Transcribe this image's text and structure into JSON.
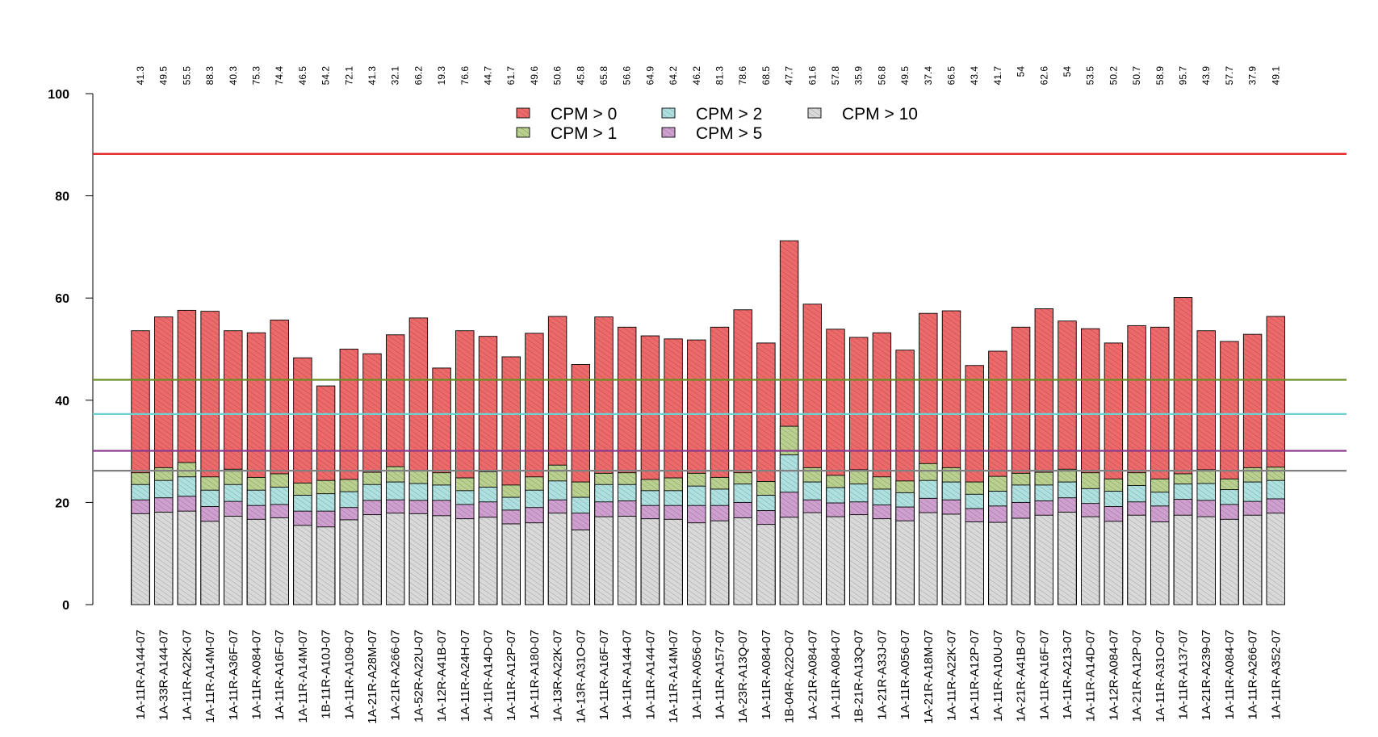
{
  "chart_data": {
    "type": "bar",
    "title": "",
    "xlabel": "",
    "ylabel": "",
    "ylim": [
      0,
      100
    ],
    "yticks": [
      "0",
      "20",
      "40",
      "60",
      "80",
      "100"
    ],
    "categories": [
      "1A-11R-A144-07",
      "1A-33R-A144-07",
      "1A-11R-A22K-07",
      "1A-11R-A14M-07",
      "1A-11R-A36F-07",
      "1A-11R-A084-07",
      "1A-11R-A16F-07",
      "1A-11R-A14M-07",
      "1B-11R-A10J-07",
      "1A-11R-A109-07",
      "1A-21R-A28M-07",
      "1A-21R-A266-07",
      "1A-52R-A22U-07",
      "1A-12R-A41B-07",
      "1A-11R-A24H-07",
      "1A-11R-A14D-07",
      "1A-11R-A12P-07",
      "1A-11R-A180-07",
      "1A-13R-A22K-07",
      "1A-13R-A31O-07",
      "1A-11R-A16F-07",
      "1A-11R-A144-07",
      "1A-11R-A144-07",
      "1A-11R-A14M-07",
      "1A-11R-A056-07",
      "1A-11R-A157-07",
      "1A-23R-A13Q-07",
      "1A-11R-A084-07",
      "1B-04R-A22O-07",
      "1A-21R-A084-07",
      "1A-11R-A084-07",
      "1B-21R-A13Q-07",
      "1A-21R-A33J-07",
      "1A-11R-A056-07",
      "1A-21R-A18M-07",
      "1A-11R-A22K-07",
      "1A-11R-A12P-07",
      "1A-11R-A10U-07",
      "1A-21R-A41B-07",
      "1A-11R-A16F-07",
      "1A-11R-A213-07",
      "1A-11R-A14D-07",
      "1A-12R-A084-07",
      "1A-21R-A12P-07",
      "1A-11R-A31O-07",
      "1A-11R-A137-07",
      "1A-21R-A239-07",
      "1A-11R-A084-07",
      "1A-11R-A266-07",
      "1A-11R-A352-07"
    ],
    "top_labels": [
      "41.3",
      "49.5",
      "55.5",
      "88.3",
      "40.3",
      "75.3",
      "74.4",
      "46.5",
      "54.2",
      "72.1",
      "41.3",
      "32.1",
      "66.2",
      "19.3",
      "76.6",
      "44.7",
      "61.7",
      "49.6",
      "50.6",
      "45.8",
      "65.8",
      "56.6",
      "64.9",
      "64.2",
      "46.2",
      "81.3",
      "78.6",
      "68.5",
      "47.7",
      "61.6",
      "57.8",
      "35.9",
      "56.8",
      "49.5",
      "37.4",
      "66.5",
      "43.4",
      "41.7",
      "54",
      "62.6",
      "54",
      "53.5",
      "50.2",
      "50.7",
      "58.9",
      "95.7",
      "43.9",
      "57.7",
      "37.9",
      "49.1"
    ],
    "series": [
      {
        "name": "CPM > 0",
        "color": "#ee6a6a",
        "values": [
          53.6,
          56.3,
          57.6,
          57.4,
          53.6,
          53.2,
          55.7,
          48.3,
          42.8,
          50.0,
          49.1,
          52.8,
          56.1,
          46.3,
          53.6,
          52.5,
          48.5,
          53.1,
          56.4,
          47.0,
          56.3,
          54.3,
          52.6,
          52.0,
          51.8,
          54.3,
          57.7,
          51.2,
          71.2,
          58.8,
          53.9,
          52.3,
          53.2,
          49.8,
          57.0,
          57.5,
          46.8,
          49.6,
          54.3,
          57.9,
          55.5,
          54.0,
          51.2,
          54.6,
          54.3,
          60.1,
          53.6,
          51.5,
          52.9,
          56.4
        ]
      },
      {
        "name": "CPM > 1",
        "color": "#b9d08f",
        "values": [
          25.8,
          26.8,
          27.8,
          25.0,
          26.5,
          24.9,
          25.6,
          23.8,
          24.3,
          24.5,
          25.9,
          27.0,
          26.3,
          25.8,
          24.8,
          26.0,
          23.4,
          25.0,
          27.3,
          24.0,
          25.7,
          25.8,
          24.5,
          24.8,
          25.7,
          24.9,
          25.8,
          24.1,
          34.9,
          26.8,
          25.3,
          26.4,
          25.0,
          24.2,
          27.6,
          26.8,
          24.0,
          25.1,
          25.7,
          25.9,
          26.5,
          25.8,
          24.6,
          25.8,
          24.6,
          25.6,
          26.4,
          24.6,
          26.8,
          26.9
        ]
      },
      {
        "name": "CPM > 2",
        "color": "#aee0e0",
        "values": [
          23.5,
          24.3,
          25.0,
          22.4,
          23.5,
          22.4,
          23.0,
          21.4,
          21.7,
          22.1,
          23.5,
          24.0,
          23.7,
          23.4,
          22.3,
          23.0,
          21.0,
          22.4,
          24.2,
          21.0,
          23.5,
          23.5,
          22.3,
          22.3,
          23.2,
          22.6,
          23.6,
          21.4,
          29.3,
          24.0,
          22.9,
          23.6,
          22.6,
          21.9,
          24.3,
          24.0,
          21.6,
          22.2,
          23.4,
          23.4,
          24.0,
          22.7,
          22.2,
          23.3,
          22.0,
          23.6,
          23.7,
          22.5,
          24.0,
          24.3
        ]
      },
      {
        "name": "CPM > 5",
        "color": "#cf9fcf",
        "values": [
          20.5,
          20.9,
          21.2,
          19.2,
          20.2,
          19.4,
          19.6,
          18.3,
          18.3,
          19.0,
          20.4,
          20.5,
          20.4,
          20.4,
          19.6,
          20.1,
          18.5,
          19.0,
          20.5,
          17.9,
          20.1,
          20.3,
          19.4,
          19.4,
          19.4,
          19.4,
          20.0,
          18.4,
          22.0,
          20.5,
          19.9,
          20.1,
          19.5,
          19.1,
          20.8,
          20.5,
          18.8,
          19.3,
          20.0,
          20.3,
          20.9,
          19.8,
          19.2,
          20.1,
          19.3,
          20.6,
          20.4,
          19.6,
          20.2,
          20.7
        ]
      },
      {
        "name": "CPM > 10",
        "color": "#d9d9d9",
        "values": [
          17.8,
          18.1,
          18.3,
          16.3,
          17.3,
          16.7,
          17.0,
          15.5,
          15.2,
          16.6,
          17.6,
          17.9,
          17.8,
          17.4,
          16.8,
          17.1,
          15.8,
          16.0,
          17.9,
          14.6,
          17.2,
          17.3,
          16.8,
          16.7,
          16.0,
          16.4,
          17.0,
          15.7,
          17.1,
          18.0,
          17.2,
          17.6,
          16.8,
          16.4,
          18.0,
          17.7,
          16.2,
          16.1,
          16.9,
          17.5,
          18.1,
          17.2,
          16.3,
          17.5,
          16.2,
          17.5,
          17.2,
          16.7,
          17.5,
          17.9
        ]
      }
    ],
    "legend": {
      "placement": "top",
      "entries": [
        "CPM > 0",
        "CPM > 2",
        "CPM > 10",
        "CPM > 1",
        "CPM > 5"
      ]
    },
    "hlines": [
      {
        "y": 88.2,
        "color": "#e31a1c"
      },
      {
        "y": 44.0,
        "color": "#6b8e23"
      },
      {
        "y": 37.3,
        "color": "#6fcfcf"
      },
      {
        "y": 30.1,
        "color": "#8b3a8b"
      },
      {
        "y": 26.2,
        "color": "#808080"
      }
    ],
    "grid": false
  }
}
